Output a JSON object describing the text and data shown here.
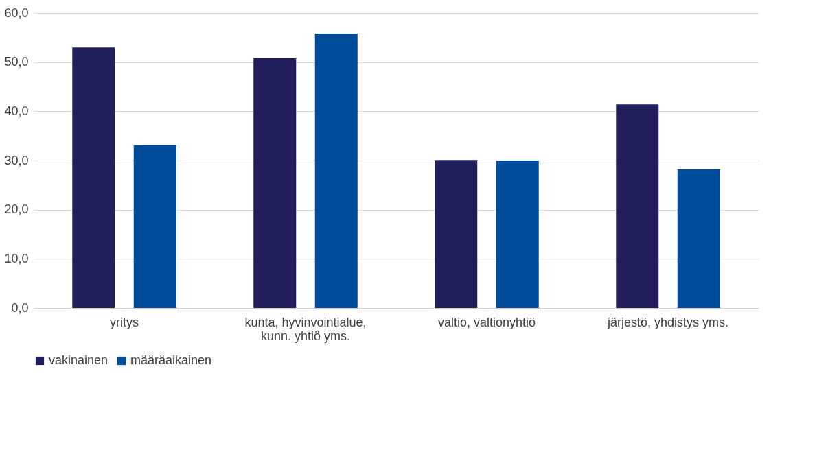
{
  "chart_data": {
    "type": "bar",
    "categories": [
      "yritys",
      "kunta, hyvinvointialue,\nkunn. yhtiö yms.",
      "valtio, valtionyhtiö",
      "järjestö, yhdistys yms."
    ],
    "series": [
      {
        "name": "vakinainen",
        "color": "#201f5b",
        "values": [
          53.0,
          50.8,
          30.1,
          41.4
        ]
      },
      {
        "name": "määräaikainen",
        "color": "#004c9c",
        "values": [
          33.1,
          55.8,
          30.0,
          28.2
        ]
      }
    ],
    "ylim": [
      0,
      60
    ],
    "yticks": [
      {
        "value": 0,
        "label": "0,0"
      },
      {
        "value": 10,
        "label": "10,0"
      },
      {
        "value": 20,
        "label": "20,0"
      },
      {
        "value": 30,
        "label": "30,0"
      },
      {
        "value": 40,
        "label": "40,0"
      },
      {
        "value": 50,
        "label": "50,0"
      },
      {
        "value": 60,
        "label": "60,0"
      }
    ],
    "grid": "y",
    "legend": "bottom"
  }
}
